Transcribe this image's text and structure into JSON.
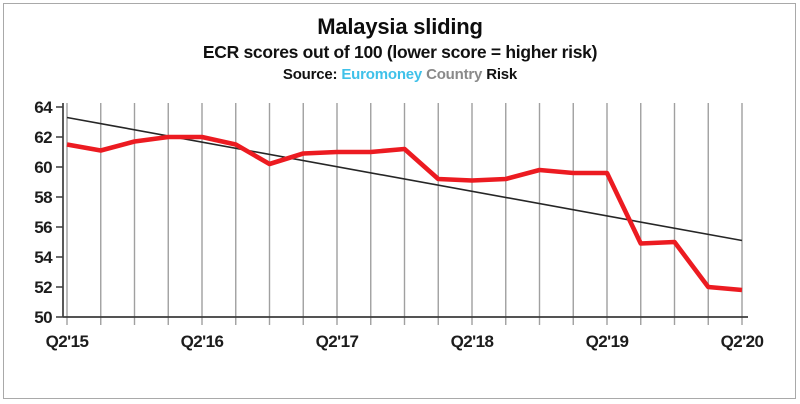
{
  "window": {
    "background": "#ffffff",
    "border_color": "#a9a9a9"
  },
  "header": {
    "title": "Malaysia sliding",
    "subtitle": "ECR scores out of 100 (lower score = higher risk)",
    "source_parts": [
      {
        "name": "source-label",
        "text": "Source:",
        "color": "#111111"
      },
      {
        "name": "source-word-euromoney",
        "text": "Euromoney",
        "color": "#3fc1e9"
      },
      {
        "name": "source-word-country",
        "text": "Country",
        "color": "#8a8a8a"
      },
      {
        "name": "source-word-risk",
        "text": "Risk",
        "color": "#111111"
      }
    ]
  },
  "chart_data": {
    "type": "line",
    "title": "Malaysia sliding",
    "subtitle": "ECR scores out of 100 (lower score = higher risk)",
    "source": "Source: Euromoney Country Risk",
    "categories": [
      "Q2'15",
      "Q3'15",
      "Q4'15",
      "Q1'16",
      "Q2'16",
      "Q3'16",
      "Q4'16",
      "Q1'17",
      "Q2'17",
      "Q3'17",
      "Q4'17",
      "Q1'18",
      "Q2'18",
      "Q3'18",
      "Q4'18",
      "Q1'19",
      "Q2'19",
      "Q3'19",
      "Q4'19",
      "Q1'20",
      "Q2'20"
    ],
    "x_tick_labels": [
      "Q2'15",
      "Q2'16",
      "Q2'17",
      "Q2'18",
      "Q2'19",
      "Q2'20"
    ],
    "x_label_every": 4,
    "series": [
      {
        "name": "ECR score",
        "color": "#ec1b21",
        "stroke_width": 4.6,
        "values": [
          61.5,
          61.1,
          61.7,
          62.0,
          62.0,
          61.5,
          60.2,
          60.9,
          61.0,
          61.0,
          61.2,
          59.2,
          59.1,
          59.2,
          59.8,
          59.6,
          59.6,
          54.9,
          55.0,
          52.0,
          51.8
        ]
      }
    ],
    "trend_line": {
      "name": "Linear trend",
      "start_value": 63.3,
      "end_value": 55.1,
      "color": "#262626",
      "stroke_width": 1.6
    },
    "ylim": [
      50,
      64
    ],
    "y_ticks": [
      50,
      52,
      54,
      56,
      58,
      60,
      62,
      64
    ],
    "grid": {
      "vertical": true,
      "horizontal": false,
      "color": "#a0a0a0",
      "width": 1.4
    },
    "axis_color": "#3c3c3c",
    "legend": "none"
  }
}
